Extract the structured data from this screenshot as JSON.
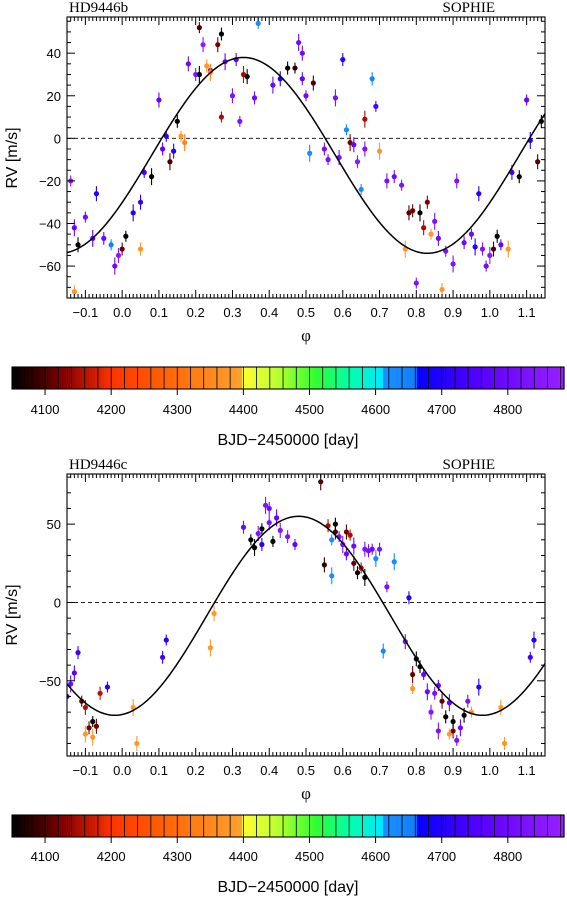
{
  "chart_data": [
    {
      "type": "scatter",
      "title": "HD9446b",
      "instrument": "SOPHIE",
      "xlabel": "φ",
      "ylabel": "RV [m/s]",
      "xlim": [
        -0.15,
        1.15
      ],
      "ylim": [
        -75,
        57
      ],
      "xticks": [
        -0.1,
        0.0,
        0.1,
        0.2,
        0.3,
        0.4,
        0.5,
        0.6,
        0.7,
        0.8,
        0.9,
        1.0,
        1.1
      ],
      "xtick_labels": [
        "−0.1",
        "0.0",
        "0.1",
        "0.2",
        "0.3",
        "0.4",
        "0.5",
        "0.6",
        "0.7",
        "0.8",
        "0.9",
        "1.0",
        "1.1"
      ],
      "yticks": [
        -60,
        -40,
        -20,
        0,
        20,
        40
      ],
      "ytick_labels": [
        "−60",
        "−40",
        "−20",
        "0",
        "20",
        "40"
      ],
      "zero_line": true,
      "model": {
        "k": 46,
        "v0": -8,
        "phase_max": 0.33
      },
      "points": [
        [
          -0.14,
          -20,
          4860
        ],
        [
          -0.13,
          -42,
          4780
        ],
        [
          -0.12,
          -50,
          4050
        ],
        [
          -0.13,
          -72,
          4380
        ],
        [
          -0.1,
          -37,
          4810
        ],
        [
          -0.08,
          -47,
          4760
        ],
        [
          -0.07,
          -26,
          4700
        ],
        [
          -0.05,
          -47,
          4790
        ],
        [
          -0.03,
          -50,
          4660
        ],
        [
          -0.02,
          -60,
          4800
        ],
        [
          -0.01,
          -55,
          4850
        ],
        [
          0.0,
          -52,
          4110
        ],
        [
          0.01,
          -46,
          4050
        ],
        [
          0.03,
          -35,
          4700
        ],
        [
          0.05,
          -30,
          4720
        ],
        [
          0.05,
          -52,
          4380
        ],
        [
          0.06,
          -16,
          4730
        ],
        [
          0.08,
          -18,
          4050
        ],
        [
          0.1,
          18,
          4780
        ],
        [
          0.11,
          -5,
          4780
        ],
        [
          0.12,
          1,
          4700
        ],
        [
          0.13,
          -11,
          4100
        ],
        [
          0.14,
          -6,
          4700
        ],
        [
          0.15,
          8,
          4050
        ],
        [
          0.16,
          1,
          4380
        ],
        [
          0.17,
          -2,
          4340
        ],
        [
          0.18,
          35,
          4800
        ],
        [
          0.2,
          30,
          4840
        ],
        [
          0.21,
          52,
          4100
        ],
        [
          0.21,
          30,
          4050
        ],
        [
          0.22,
          44,
          4860
        ],
        [
          0.23,
          34,
          4380
        ],
        [
          0.24,
          32,
          4830
        ],
        [
          0.24,
          31,
          4340
        ],
        [
          0.26,
          44,
          4120
        ],
        [
          0.27,
          49,
          4050
        ],
        [
          0.27,
          10,
          4150
        ],
        [
          0.28,
          36,
          4780
        ],
        [
          0.3,
          20,
          4830
        ],
        [
          0.31,
          37,
          4760
        ],
        [
          0.32,
          8,
          4830
        ],
        [
          0.33,
          30,
          4150
        ],
        [
          0.34,
          29,
          4050
        ],
        [
          0.36,
          19,
          4800
        ],
        [
          0.37,
          54,
          4620
        ],
        [
          0.41,
          25,
          4790
        ],
        [
          0.43,
          28,
          4700
        ],
        [
          0.45,
          33,
          4050
        ],
        [
          0.47,
          33,
          4080
        ],
        [
          0.48,
          45,
          4800
        ],
        [
          0.49,
          40,
          4800
        ],
        [
          0.49,
          28,
          4780
        ],
        [
          0.5,
          20,
          4800
        ],
        [
          0.51,
          -7,
          4620
        ],
        [
          0.52,
          26,
          4100
        ],
        [
          0.55,
          -5,
          4820
        ],
        [
          0.56,
          -10,
          4820
        ],
        [
          0.58,
          19,
          4820
        ],
        [
          0.59,
          -9,
          4820
        ],
        [
          0.6,
          37,
          4700
        ],
        [
          0.61,
          4,
          4620
        ],
        [
          0.62,
          -2,
          4120
        ],
        [
          0.63,
          -3,
          4780
        ],
        [
          0.64,
          -11,
          4860
        ],
        [
          0.65,
          -24,
          4620
        ],
        [
          0.66,
          9,
          4150
        ],
        [
          0.66,
          -5,
          4830
        ],
        [
          0.68,
          28,
          4640
        ],
        [
          0.69,
          15,
          4740
        ],
        [
          0.7,
          -6,
          4380
        ],
        [
          0.72,
          -20,
          4820
        ],
        [
          0.74,
          -18,
          4800
        ],
        [
          0.76,
          -22,
          4830
        ],
        [
          0.77,
          -52,
          4380
        ],
        [
          0.78,
          -35,
          4100
        ],
        [
          0.79,
          -34,
          4120
        ],
        [
          0.8,
          -68,
          4830
        ],
        [
          0.81,
          -35,
          4050
        ],
        [
          0.82,
          -42,
          4150
        ],
        [
          0.83,
          -30,
          4120
        ],
        [
          0.84,
          -45,
          4380
        ],
        [
          0.85,
          -39,
          4830
        ],
        [
          0.86,
          -47,
          4800
        ],
        [
          0.87,
          -71,
          4380
        ],
        [
          0.88,
          -53,
          4830
        ],
        [
          0.9,
          -59,
          4830
        ],
        [
          0.91,
          -20,
          4830
        ],
        [
          0.93,
          -49,
          4800
        ],
        [
          0.95,
          -45,
          4800
        ],
        [
          0.96,
          -51,
          4700
        ],
        [
          0.97,
          -26,
          4700
        ],
        [
          0.98,
          -52,
          4840
        ],
        [
          0.99,
          -60,
          4800
        ],
        [
          1.0,
          -55,
          4850
        ],
        [
          1.01,
          -52,
          4100
        ],
        [
          1.02,
          -46,
          4050
        ],
        [
          1.03,
          -50,
          4780
        ],
        [
          1.05,
          -52,
          4380
        ],
        [
          1.06,
          -16,
          4730
        ],
        [
          1.08,
          -18,
          4050
        ],
        [
          1.1,
          18,
          4780
        ],
        [
          1.11,
          -1,
          4700
        ],
        [
          1.13,
          -11,
          4100
        ],
        [
          1.14,
          8,
          4050
        ]
      ]
    },
    {
      "type": "scatter",
      "title": "HD9446c",
      "instrument": "SOPHIE",
      "xlabel": "φ",
      "ylabel": "RV [m/s]",
      "xlim": [
        -0.15,
        1.15
      ],
      "ylim": [
        -98,
        82
      ],
      "xticks": [
        -0.1,
        0.0,
        0.1,
        0.2,
        0.3,
        0.4,
        0.5,
        0.6,
        0.7,
        0.8,
        0.9,
        1.0,
        1.1
      ],
      "xtick_labels": [
        "−0.1",
        "0.0",
        "0.1",
        "0.2",
        "0.3",
        "0.4",
        "0.5",
        "0.6",
        "0.7",
        "0.8",
        "0.9",
        "1.0",
        "1.1"
      ],
      "yticks": [
        -50,
        0,
        50
      ],
      "ytick_labels": [
        "−50",
        "0",
        "50"
      ],
      "zero_line": true,
      "model": {
        "k": 63.5,
        "v0": -8.5,
        "phase_max": 0.48
      },
      "points": [
        [
          -0.15,
          -60,
          4720
        ],
        [
          -0.14,
          -52,
          4800
        ],
        [
          -0.13,
          -45,
          4760
        ],
        [
          -0.12,
          -32,
          4730
        ],
        [
          -0.11,
          -63,
          4100
        ],
        [
          -0.1,
          -84,
          4380
        ],
        [
          -0.1,
          -67,
          4150
        ],
        [
          -0.09,
          -80,
          4120
        ],
        [
          -0.08,
          -76,
          4050
        ],
        [
          -0.08,
          -86,
          4380
        ],
        [
          -0.07,
          -79,
          4120
        ],
        [
          -0.06,
          -58,
          4160
        ],
        [
          -0.04,
          -54,
          4700
        ],
        [
          0.03,
          -67,
          4380
        ],
        [
          0.04,
          -90,
          4380
        ],
        [
          0.11,
          -35,
          4730
        ],
        [
          0.12,
          -24,
          4700
        ],
        [
          0.24,
          -29,
          4380
        ],
        [
          0.25,
          -7,
          4380
        ],
        [
          0.33,
          48,
          4800
        ],
        [
          0.35,
          40,
          4050
        ],
        [
          0.36,
          35,
          4020
        ],
        [
          0.37,
          44,
          4830
        ],
        [
          0.38,
          37,
          4700
        ],
        [
          0.38,
          47,
          4050
        ],
        [
          0.39,
          62,
          4830
        ],
        [
          0.4,
          51,
          4830
        ],
        [
          0.4,
          60,
          4800
        ],
        [
          0.41,
          39,
          4050
        ],
        [
          0.42,
          54,
          4780
        ],
        [
          0.43,
          46,
          4840
        ],
        [
          0.45,
          42,
          4830
        ],
        [
          0.47,
          37,
          4780
        ],
        [
          0.54,
          77,
          4100
        ],
        [
          0.55,
          24,
          4080
        ],
        [
          0.56,
          49,
          4150
        ],
        [
          0.57,
          40,
          4620
        ],
        [
          0.57,
          17,
          4620
        ],
        [
          0.58,
          45,
          4100
        ],
        [
          0.58,
          50,
          4050
        ],
        [
          0.59,
          42,
          4820
        ],
        [
          0.6,
          37,
          4830
        ],
        [
          0.61,
          45,
          4120
        ],
        [
          0.61,
          31,
          4800
        ],
        [
          0.62,
          43,
          4150
        ],
        [
          0.63,
          36,
          4800
        ],
        [
          0.63,
          25,
          4110
        ],
        [
          0.64,
          19,
          4050
        ],
        [
          0.65,
          22,
          4150
        ],
        [
          0.66,
          16,
          4050
        ],
        [
          0.66,
          34,
          4830
        ],
        [
          0.67,
          33,
          4820
        ],
        [
          0.68,
          34,
          4800
        ],
        [
          0.69,
          28,
          4640
        ],
        [
          0.71,
          -31,
          4640
        ],
        [
          0.7,
          34,
          4830
        ],
        [
          0.72,
          10,
          4820
        ],
        [
          0.74,
          26,
          4620
        ],
        [
          0.77,
          -25,
          4820
        ],
        [
          0.78,
          3,
          4700
        ],
        [
          0.79,
          -55,
          4380
        ],
        [
          0.79,
          -46,
          4110
        ],
        [
          0.8,
          -36,
          4050
        ],
        [
          0.81,
          -41,
          4050
        ],
        [
          0.82,
          -46,
          4780
        ],
        [
          0.83,
          -57,
          4800
        ],
        [
          0.84,
          -70,
          4850
        ],
        [
          0.85,
          -58,
          4830
        ],
        [
          0.86,
          -53,
          4780
        ],
        [
          0.86,
          -82,
          4830
        ],
        [
          0.87,
          -63,
          4110
        ],
        [
          0.88,
          -73,
          4050
        ],
        [
          0.89,
          -84,
          4380
        ],
        [
          0.89,
          -64,
          4780
        ],
        [
          0.9,
          -82,
          4120
        ],
        [
          0.9,
          -76,
          4050
        ],
        [
          0.91,
          -88,
          4830
        ],
        [
          0.92,
          -80,
          4800
        ],
        [
          0.93,
          -72,
          4050
        ],
        [
          0.94,
          -63,
          4830
        ],
        [
          0.95,
          -70,
          4380
        ],
        [
          0.97,
          -54,
          4700
        ],
        [
          1.03,
          -67,
          4380
        ],
        [
          1.04,
          -90,
          4380
        ],
        [
          1.11,
          -35,
          4730
        ],
        [
          1.12,
          -24,
          4700
        ]
      ]
    }
  ],
  "colorbars": [
    {
      "label": "BJD−2450000 [day]",
      "ticks": [
        4100,
        4200,
        4300,
        4400,
        4500,
        4600,
        4700,
        4800
      ]
    },
    {
      "label": "BJD−2450000 [day]",
      "ticks": [
        4100,
        4200,
        4300,
        4400,
        4500,
        4600,
        4700,
        4800
      ]
    }
  ],
  "colormap": {
    "range": [
      4050,
      4885
    ],
    "stops": [
      [
        4050,
        "#000000"
      ],
      [
        4090,
        "#3a0000"
      ],
      [
        4130,
        "#8b0000"
      ],
      [
        4170,
        "#c41a00"
      ],
      [
        4200,
        "#ff3300"
      ],
      [
        4260,
        "#ff5500"
      ],
      [
        4320,
        "#ff7a10"
      ],
      [
        4398,
        "#ffa030"
      ],
      [
        4400,
        "#ffff30"
      ],
      [
        4450,
        "#bbff30"
      ],
      [
        4510,
        "#30ff30"
      ],
      [
        4560,
        "#00ffaa"
      ],
      [
        4610,
        "#00e8ff"
      ],
      [
        4611,
        "#1a90ff"
      ],
      [
        4660,
        "#1080ff"
      ],
      [
        4661,
        "#0000ff"
      ],
      [
        4760,
        "#5a00ff"
      ],
      [
        4885,
        "#9a20ff"
      ]
    ]
  },
  "colors": {
    "model_curve": "#000000",
    "axes": "#000000",
    "errorbar": "alpha"
  }
}
